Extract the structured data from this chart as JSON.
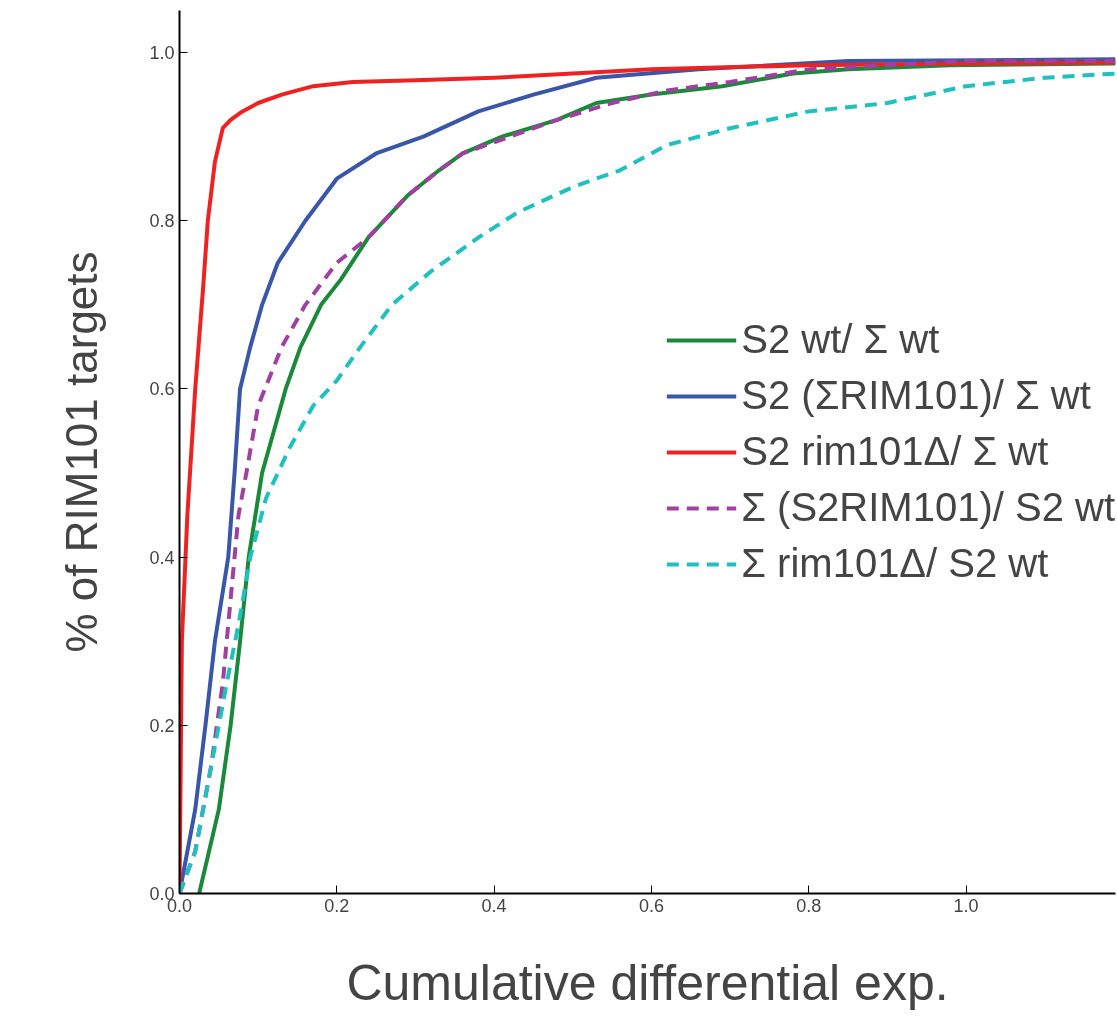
{
  "chart_data": {
    "type": "line",
    "xlabel": "Cumulative differential exp.",
    "ylabel": "% of RIM101 targets",
    "xlim": [
      0,
      1.19
    ],
    "ylim": [
      0,
      1.05
    ],
    "xticks": [
      {
        "value": 0,
        "label": "0.0"
      },
      {
        "value": 0.2,
        "label": "0.2"
      },
      {
        "value": 0.4,
        "label": "0.4"
      },
      {
        "value": 0.6,
        "label": "0.6"
      },
      {
        "value": 0.8,
        "label": "0.8"
      },
      {
        "value": 1.0,
        "label": "1.0"
      }
    ],
    "yticks": [
      {
        "value": 0,
        "label": "0.0"
      },
      {
        "value": 0.2,
        "label": "0.2"
      },
      {
        "value": 0.4,
        "label": "0.4"
      },
      {
        "value": 0.6,
        "label": "0.6"
      },
      {
        "value": 0.8,
        "label": "0.8"
      },
      {
        "value": 1.0,
        "label": "1.0"
      }
    ],
    "grid": false,
    "legend": "right",
    "series": [
      {
        "name": "S2 wt/ Σ wt",
        "color": "#1a8a3a",
        "line_style": "solid",
        "x": [
          0.025,
          0.05,
          0.065,
          0.077,
          0.088,
          0.105,
          0.135,
          0.154,
          0.18,
          0.205,
          0.24,
          0.29,
          0.33,
          0.36,
          0.41,
          0.48,
          0.53,
          0.6,
          0.69,
          0.78,
          0.85,
          0.98,
          1.19
        ],
        "values": [
          0,
          0.1,
          0.2,
          0.3,
          0.4,
          0.5,
          0.6,
          0.65,
          0.7,
          0.73,
          0.78,
          0.83,
          0.86,
          0.88,
          0.9,
          0.92,
          0.94,
          0.95,
          0.96,
          0.975,
          0.98,
          0.985,
          0.987
        ]
      },
      {
        "name": "S2 (ΣRIM101)/ Σ wt",
        "color": "#3a56a8",
        "line_style": "solid",
        "x": [
          0,
          0.01,
          0.02,
          0.033,
          0.045,
          0.062,
          0.07,
          0.077,
          0.09,
          0.105,
          0.125,
          0.16,
          0.2,
          0.25,
          0.31,
          0.38,
          0.45,
          0.53,
          0.66,
          0.85,
          1.19
        ],
        "values": [
          0,
          0.05,
          0.1,
          0.2,
          0.3,
          0.4,
          0.5,
          0.6,
          0.65,
          0.7,
          0.75,
          0.8,
          0.85,
          0.88,
          0.9,
          0.93,
          0.95,
          0.97,
          0.98,
          0.99,
          0.992
        ]
      },
      {
        "name": "S2 rim101Δ/ Σ wt",
        "color": "#ee2222",
        "line_style": "solid",
        "x": [
          0,
          0.003,
          0.01,
          0.02,
          0.03,
          0.036,
          0.045,
          0.055,
          0.065,
          0.08,
          0.1,
          0.13,
          0.17,
          0.22,
          0.3,
          0.4,
          0.5,
          0.6,
          0.8,
          1.0,
          1.19
        ],
        "values": [
          0,
          0.3,
          0.45,
          0.6,
          0.72,
          0.8,
          0.87,
          0.91,
          0.92,
          0.93,
          0.94,
          0.95,
          0.96,
          0.965,
          0.967,
          0.97,
          0.975,
          0.98,
          0.985,
          0.987,
          0.988
        ]
      },
      {
        "name": "Σ (S2RIM101)/ S2 wt",
        "color": "#a040a0",
        "line_style": "dashed",
        "x": [
          0,
          0.02,
          0.04,
          0.055,
          0.065,
          0.075,
          0.085,
          0.1,
          0.13,
          0.16,
          0.2,
          0.24,
          0.29,
          0.33,
          0.36,
          0.42,
          0.48,
          0.55,
          0.62,
          0.7,
          0.8,
          1.0,
          1.19
        ],
        "values": [
          0,
          0.05,
          0.15,
          0.25,
          0.35,
          0.45,
          0.5,
          0.58,
          0.65,
          0.7,
          0.75,
          0.78,
          0.83,
          0.86,
          0.88,
          0.9,
          0.92,
          0.94,
          0.955,
          0.965,
          0.98,
          0.99,
          0.99
        ]
      },
      {
        "name": "Σ rim101Δ/ S2 wt",
        "color": "#20c0c0",
        "line_style": "dashed",
        "x": [
          0,
          0.02,
          0.04,
          0.06,
          0.075,
          0.09,
          0.11,
          0.14,
          0.17,
          0.2,
          0.23,
          0.27,
          0.32,
          0.38,
          0.43,
          0.5,
          0.56,
          0.62,
          0.7,
          0.8,
          0.9,
          1.0,
          1.1,
          1.19
        ],
        "values": [
          0,
          0.05,
          0.15,
          0.25,
          0.32,
          0.4,
          0.47,
          0.53,
          0.58,
          0.61,
          0.65,
          0.7,
          0.74,
          0.78,
          0.81,
          0.84,
          0.86,
          0.89,
          0.91,
          0.93,
          0.94,
          0.96,
          0.97,
          0.975
        ]
      }
    ]
  }
}
